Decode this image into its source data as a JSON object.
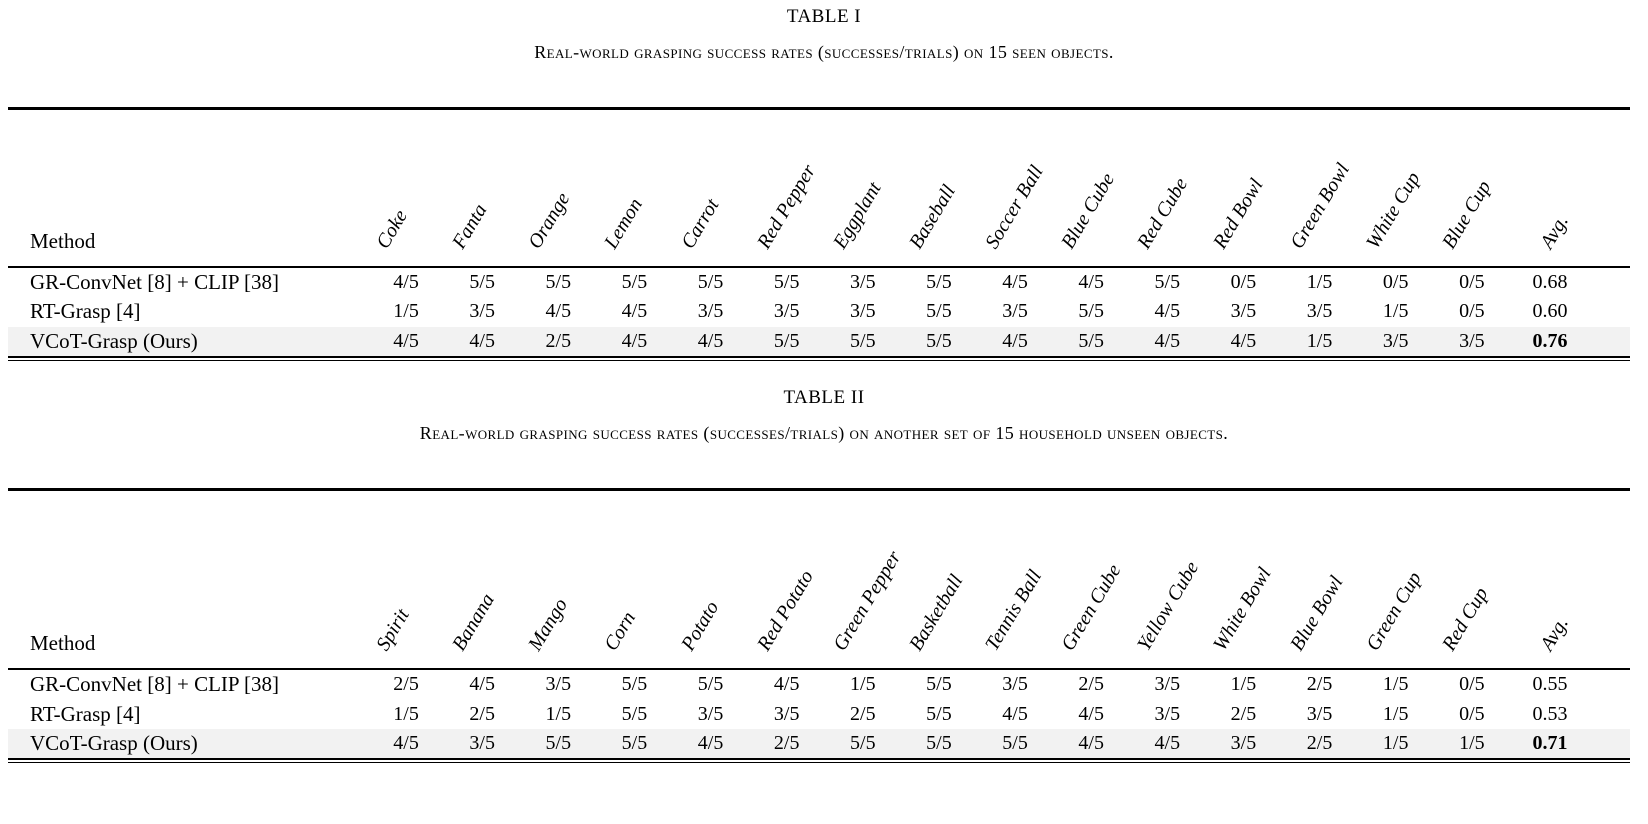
{
  "tables": [
    {
      "number": "TABLE I",
      "caption": "Real-world grasping success rates (successes/trials) on 15 seen objects.",
      "method_header": "Method",
      "avg_label": "Avg.",
      "columns": [
        "Coke",
        "Fanta",
        "Orange",
        "Lemon",
        "Carrot",
        "Red Pepper",
        "Eggplant",
        "Baseball",
        "Soccer Ball",
        "Blue Cube",
        "Red Cube",
        "Red Bowl",
        "Green Bowl",
        "White Cup",
        "Blue Cup"
      ],
      "rows": [
        {
          "method": "GR-ConvNet [8] + CLIP [38]",
          "values": [
            "4/5",
            "5/5",
            "5/5",
            "5/5",
            "5/5",
            "5/5",
            "3/5",
            "5/5",
            "4/5",
            "4/5",
            "5/5",
            "0/5",
            "1/5",
            "0/5",
            "0/5"
          ],
          "avg": "0.68",
          "highlight": false
        },
        {
          "method": "RT-Grasp [4]",
          "values": [
            "1/5",
            "3/5",
            "4/5",
            "4/5",
            "3/5",
            "3/5",
            "3/5",
            "5/5",
            "3/5",
            "5/5",
            "4/5",
            "3/5",
            "3/5",
            "1/5",
            "0/5"
          ],
          "avg": "0.60",
          "highlight": false
        },
        {
          "method": "VCoT-Grasp (Ours)",
          "values": [
            "4/5",
            "4/5",
            "2/5",
            "4/5",
            "4/5",
            "5/5",
            "5/5",
            "5/5",
            "4/5",
            "5/5",
            "4/5",
            "4/5",
            "1/5",
            "3/5",
            "3/5"
          ],
          "avg": "0.76",
          "highlight": true
        }
      ]
    },
    {
      "number": "TABLE II",
      "caption": "Real-world grasping success rates (successes/trials) on another set of 15 household unseen objects.",
      "method_header": "Method",
      "avg_label": "Avg.",
      "columns": [
        "Spirit",
        "Banana",
        "Mango",
        "Corn",
        "Potato",
        "Red Potato",
        "Green Pepper",
        "Basketball",
        "Tennis Ball",
        "Green Cube",
        "Yellow Cube",
        "White Bowl",
        "Blue Bowl",
        "Green Cup",
        "Red Cup"
      ],
      "rows": [
        {
          "method": "GR-ConvNet [8] + CLIP [38]",
          "values": [
            "2/5",
            "4/5",
            "3/5",
            "5/5",
            "5/5",
            "4/5",
            "1/5",
            "5/5",
            "3/5",
            "2/5",
            "3/5",
            "1/5",
            "2/5",
            "1/5",
            "0/5"
          ],
          "avg": "0.55",
          "highlight": false
        },
        {
          "method": "RT-Grasp [4]",
          "values": [
            "1/5",
            "2/5",
            "1/5",
            "5/5",
            "3/5",
            "3/5",
            "2/5",
            "5/5",
            "4/5",
            "4/5",
            "3/5",
            "2/5",
            "3/5",
            "1/5",
            "0/5"
          ],
          "avg": "0.53",
          "highlight": false
        },
        {
          "method": "VCoT-Grasp (Ours)",
          "values": [
            "4/5",
            "3/5",
            "5/5",
            "5/5",
            "4/5",
            "2/5",
            "5/5",
            "5/5",
            "5/5",
            "4/5",
            "4/5",
            "3/5",
            "2/5",
            "1/5",
            "1/5"
          ],
          "avg": "0.71",
          "highlight": true
        }
      ]
    }
  ]
}
